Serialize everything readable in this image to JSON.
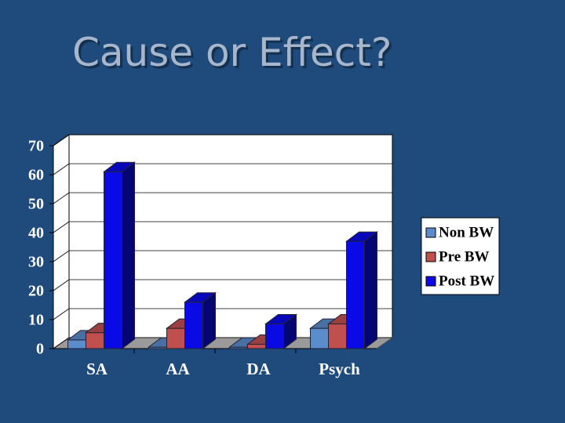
{
  "chart_data": {
    "type": "bar3d",
    "title": "Cause or Effect?",
    "categories": [
      "SA",
      "AA",
      "DA",
      "Psych"
    ],
    "series": [
      {
        "name": "Non BW",
        "color": "#5b8ccc",
        "values": [
          3,
          0.5,
          0.5,
          7
        ]
      },
      {
        "name": "Pre BW",
        "color": "#c0504d",
        "values": [
          5.5,
          7,
          1.5,
          8.5
        ]
      },
      {
        "name": "Post BW",
        "color": "#0a0ae6",
        "values": [
          61,
          16,
          8.5,
          37
        ]
      }
    ],
    "ylim": [
      0,
      70
    ],
    "yticks": [
      0,
      10,
      20,
      30,
      40,
      50,
      60,
      70
    ],
    "grid": true,
    "legend": "right"
  }
}
